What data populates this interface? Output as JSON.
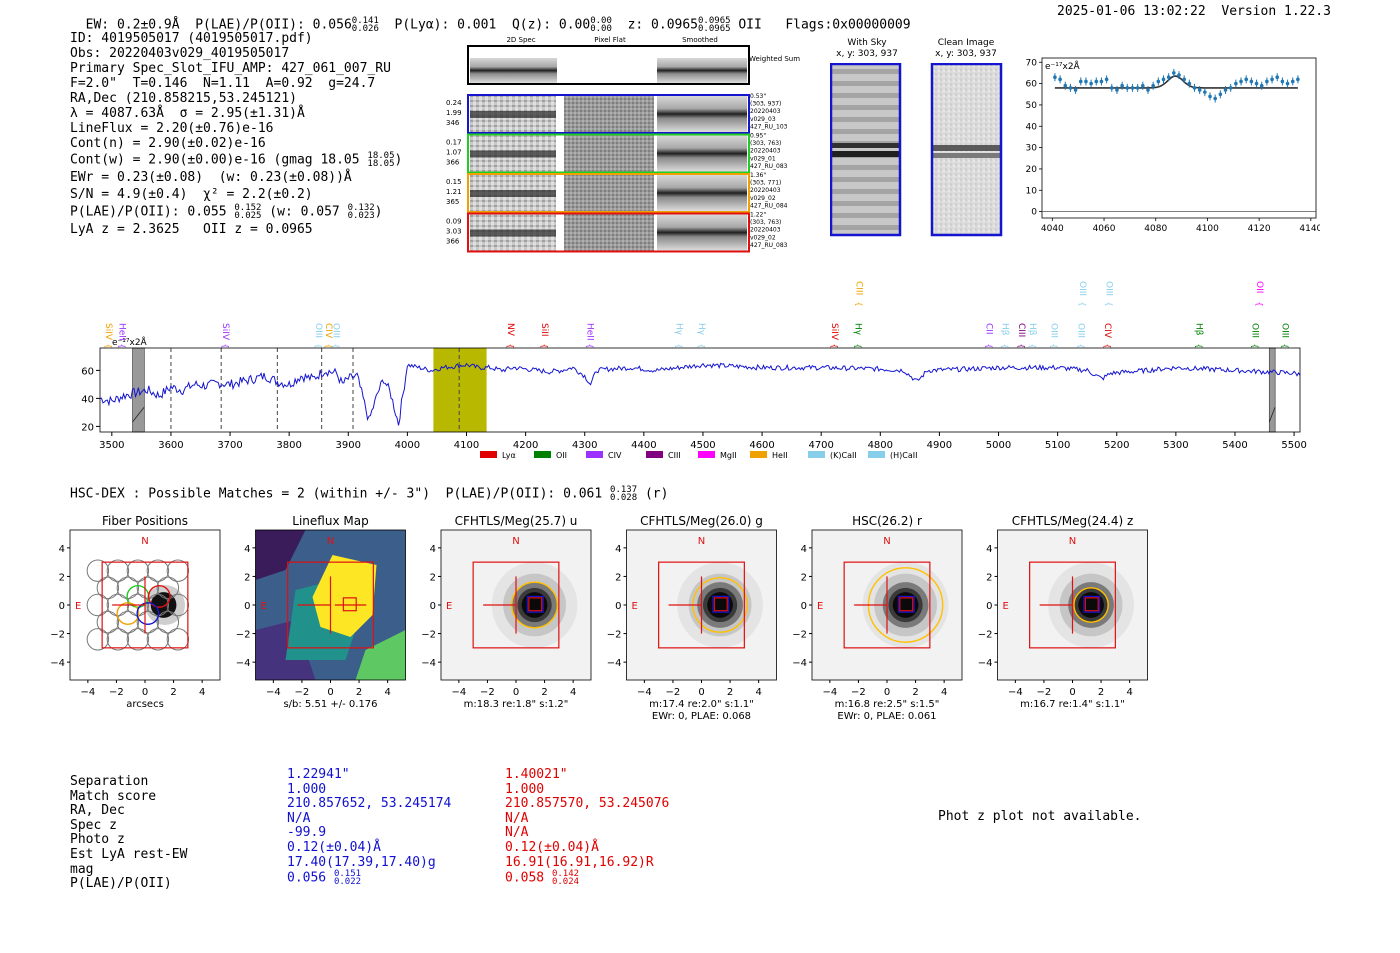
{
  "header": {
    "ew": "EW: 0.2±0.9Å",
    "plae_label": "P(LAE)/P(OII): 0.056",
    "plae_hi": "0.141",
    "plae_lo": "0.026",
    "plya": "P(Lyα): 0.001",
    "qz_label": "Q(z): 0.00",
    "qz_hi": "0.00",
    "qz_lo": "0.00",
    "z_label": "z: 0.0965",
    "z_hi": "0.0965",
    "z_lo": "0.0965",
    "z_line": "OII",
    "flags": "Flags:0x00000009",
    "timestamp": "2025-01-06 13:02:22",
    "version": "Version 1.22.3"
  },
  "info": {
    "lines": [
      "ID: 4019505017 (4019505017.pdf)",
      "Obs: 20220403v029_4019505017",
      "Primary Spec_Slot_IFU_AMP: 427_061_007_RU",
      "F=2.0\"  T=0.146  N=1.11  A=0.92  g=24.7",
      "RA,Dec (210.858215,53.245121)",
      "λ = 4087.63Å  σ = 2.95(±1.31)Å",
      "LineFlux = 2.20(±0.76)e-16",
      "Cont(n) = 2.90(±0.02)e-16"
    ],
    "contw": "Cont(w) = 2.90(±0.00)e-16 (gmag 18.05",
    "contw_hi": "18.05",
    "contw_lo": "18.05",
    "contw_end": ")",
    "ewr": "EWr = 0.23(±0.08)  (w: 0.23(±0.08))Å",
    "sn": "S/N = 4.9(±0.4)  χ² = 2.2(±0.2)",
    "plae": "P(LAE)/P(OII): 0.055",
    "plae_hi": "0.152",
    "plae_lo": "0.025",
    "plae_w": "(w: 0.057",
    "plae_w_hi": "0.132",
    "plae_w_lo": "0.023",
    "plae_end": ")",
    "lyaz": "LyA z = 2.3625   OII z = 0.0965"
  },
  "cutouts": {
    "col_headers": [
      "2D Spec",
      "Pixel Flat",
      "Smoothed"
    ],
    "weighted_sum": "Weighted Sum",
    "rows": [
      {
        "left": [
          "0.24",
          "1.99",
          "346"
        ],
        "right": [
          "0.53\"",
          "(303, 937)",
          "20220403",
          "v029_03",
          "427_RU_103"
        ],
        "color": "#1515d0"
      },
      {
        "left": [
          "0.17",
          "1.07",
          "366"
        ],
        "right": [
          "0.95\"",
          "(303, 763)",
          "20220403",
          "v029_01",
          "427_RU_083"
        ],
        "color": "#22cc22"
      },
      {
        "left": [
          "0.15",
          "1.21",
          "365"
        ],
        "right": [
          "1.36\"",
          "(303, 771)",
          "20220403",
          "v029_02",
          "427_RU_084"
        ],
        "color": "#f0a000"
      },
      {
        "left": [
          "0.09",
          "3.03",
          "366"
        ],
        "right": [
          "1.22\"",
          "(303, 763)",
          "20220403",
          "v029_02",
          "427_RU_083"
        ],
        "color": "#e01010"
      }
    ],
    "with_sky_title": "With Sky",
    "with_sky_xy": "x, y: 303, 937",
    "clean_title": "Clean Image",
    "clean_xy": "x, y: 303, 937"
  },
  "zoom_chart": {
    "unit": "e⁻¹⁷x2Å",
    "xticks": [
      "4040",
      "4060",
      "4080",
      "4100",
      "4120",
      "4140"
    ],
    "yticks": [
      "0",
      "10",
      "20",
      "30",
      "40",
      "50",
      "60",
      "70"
    ]
  },
  "chart_data": [
    {
      "type": "scatter",
      "title": "",
      "xlabel": "",
      "ylabel": "e⁻¹⁷x2Å",
      "xlim": [
        4036,
        4142
      ],
      "ylim": [
        -3,
        72
      ],
      "x": [
        4041,
        4043,
        4045,
        4047,
        4049,
        4051,
        4053,
        4055,
        4057,
        4059,
        4061,
        4063,
        4065,
        4067,
        4069,
        4071,
        4073,
        4075,
        4077,
        4079,
        4081,
        4083,
        4085,
        4087,
        4089,
        4091,
        4093,
        4095,
        4097,
        4099,
        4101,
        4103,
        4105,
        4107,
        4109,
        4111,
        4113,
        4115,
        4117,
        4119,
        4121,
        4123,
        4125,
        4127,
        4129,
        4131,
        4133,
        4135
      ],
      "y": [
        63,
        62,
        59,
        58,
        57,
        61,
        61,
        60,
        61,
        61,
        62,
        58,
        57,
        59,
        58,
        58,
        58,
        59,
        57,
        59,
        61,
        62,
        63,
        65,
        64,
        62,
        60,
        58,
        57,
        56,
        54,
        53,
        55,
        57,
        58,
        60,
        61,
        62,
        61,
        60,
        59,
        61,
        62,
        63,
        61,
        60,
        61,
        62
      ],
      "fit_baseline": 58,
      "fit_peak_x": 4087.6,
      "fit_peak_height": 5.5,
      "fit_sigma": 2.95
    },
    {
      "type": "line",
      "title": "",
      "xlabel": "",
      "ylabel": "e⁻¹⁷x2Å",
      "xlim": [
        3480,
        5510
      ],
      "ylim": [
        16,
        76
      ],
      "xticks": [
        "3500",
        "3600",
        "3700",
        "3800",
        "3900",
        "4000",
        "4100",
        "4200",
        "4300",
        "4400",
        "4500",
        "4600",
        "4700",
        "4800",
        "4900",
        "5000",
        "5100",
        "5200",
        "5300",
        "5400",
        "5500"
      ],
      "yticks": [
        "20",
        "40",
        "60"
      ],
      "spectrum_anchors": [
        [
          3480,
          40
        ],
        [
          3500,
          38
        ],
        [
          3520,
          42
        ],
        [
          3540,
          44
        ],
        [
          3560,
          46
        ],
        [
          3580,
          42
        ],
        [
          3600,
          48
        ],
        [
          3620,
          46
        ],
        [
          3640,
          50
        ],
        [
          3660,
          49
        ],
        [
          3680,
          51
        ],
        [
          3700,
          50
        ],
        [
          3720,
          52
        ],
        [
          3740,
          54
        ],
        [
          3760,
          56
        ],
        [
          3780,
          52
        ],
        [
          3800,
          50
        ],
        [
          3820,
          56
        ],
        [
          3840,
          54
        ],
        [
          3860,
          60
        ],
        [
          3880,
          58
        ],
        [
          3890,
          50
        ],
        [
          3900,
          54
        ],
        [
          3915,
          56
        ],
        [
          3925,
          40
        ],
        [
          3935,
          24
        ],
        [
          3950,
          44
        ],
        [
          3960,
          54
        ],
        [
          3972,
          43
        ],
        [
          3985,
          22
        ],
        [
          4000,
          64
        ],
        [
          4020,
          62
        ],
        [
          4040,
          60
        ],
        [
          4060,
          62
        ],
        [
          4080,
          63
        ],
        [
          4100,
          64
        ],
        [
          4120,
          62
        ],
        [
          4140,
          62
        ],
        [
          4160,
          60
        ],
        [
          4180,
          62
        ],
        [
          4200,
          61
        ],
        [
          4220,
          60
        ],
        [
          4240,
          59
        ],
        [
          4260,
          60
        ],
        [
          4280,
          62
        ],
        [
          4300,
          56
        ],
        [
          4310,
          50
        ],
        [
          4320,
          60
        ],
        [
          4340,
          61
        ],
        [
          4380,
          62
        ],
        [
          4420,
          60
        ],
        [
          4460,
          62
        ],
        [
          4500,
          64
        ],
        [
          4600,
          62
        ],
        [
          4700,
          62
        ],
        [
          4800,
          61
        ],
        [
          4840,
          60
        ],
        [
          4862,
          52
        ],
        [
          4880,
          60
        ],
        [
          4950,
          61
        ],
        [
          5000,
          62
        ],
        [
          5100,
          62
        ],
        [
          5150,
          60
        ],
        [
          5175,
          54
        ],
        [
          5190,
          58
        ],
        [
          5250,
          60
        ],
        [
          5300,
          62
        ],
        [
          5400,
          60
        ],
        [
          5500,
          58
        ],
        [
          5510,
          57
        ]
      ],
      "shaded_band": [
        4044,
        4134
      ],
      "emission_marker": 4087.6,
      "dashed_lines": [
        3600,
        3685,
        3780,
        3855,
        3908,
        4087.6
      ],
      "masked_regions": [
        [
          3535,
          3555
        ],
        [
          5458,
          5468
        ]
      ],
      "line_labels": [
        {
          "label": "SiIV",
          "x": 3490,
          "color": "#f0a000",
          "level": 0
        },
        {
          "label": "HeII",
          "x": 3513,
          "color": "#9b30ff",
          "level": 0
        },
        {
          "label": "SiIV",
          "x": 3688,
          "color": "#9b30ff",
          "level": 0
        },
        {
          "label": "OIII",
          "x": 3845,
          "color": "#87ceeb",
          "level": 0
        },
        {
          "label": "CIV",
          "x": 3862,
          "color": "#f0a000",
          "level": 0
        },
        {
          "label": "OIII",
          "x": 3875,
          "color": "#87ceeb",
          "level": 0
        },
        {
          "label": "NV",
          "x": 4170,
          "color": "#e00000",
          "level": 0
        },
        {
          "label": "SiII",
          "x": 4228,
          "color": "#e00000",
          "level": 0
        },
        {
          "label": "HeII",
          "x": 4305,
          "color": "#9b30ff",
          "level": 0
        },
        {
          "label": "Hγ",
          "x": 4455,
          "color": "#87ceeb",
          "level": 0
        },
        {
          "label": "Hγ",
          "x": 4493,
          "color": "#87ceeb",
          "level": 0
        },
        {
          "label": "SiIV",
          "x": 4718,
          "color": "#e00000",
          "level": 0
        },
        {
          "label": "CIII",
          "x": 4760,
          "color": "#f0a000",
          "level": 1
        },
        {
          "label": "Hγ",
          "x": 4758,
          "color": "#008000",
          "level": 0
        },
        {
          "label": "CII",
          "x": 4980,
          "color": "#9b30ff",
          "level": 0
        },
        {
          "label": "Hβ",
          "x": 5007,
          "color": "#87ceeb",
          "level": 0
        },
        {
          "label": "CIII",
          "x": 5035,
          "color": "#800080",
          "level": 0
        },
        {
          "label": "Hβ",
          "x": 5053,
          "color": "#87ceeb",
          "level": 0
        },
        {
          "label": "OIII",
          "x": 5090,
          "color": "#87ceeb",
          "level": 0
        },
        {
          "label": "OIII",
          "x": 5135,
          "color": "#87ceeb",
          "level": 0
        },
        {
          "label": "OIII",
          "x": 5138,
          "color": "#87ceeb",
          "level": 1
        },
        {
          "label": "CIV",
          "x": 5180,
          "color": "#e00000",
          "level": 0
        },
        {
          "label": "OIII",
          "x": 5183,
          "color": "#87ceeb",
          "level": 1
        },
        {
          "label": "Hβ",
          "x": 5335,
          "color": "#008000",
          "level": 0
        },
        {
          "label": "OIII",
          "x": 5430,
          "color": "#008000",
          "level": 0
        },
        {
          "label": "OII",
          "x": 5437,
          "color": "#ff00ff",
          "level": 1
        },
        {
          "label": "OIII",
          "x": 5480,
          "color": "#008000",
          "level": 0
        }
      ],
      "legend": [
        {
          "name": "Lyα",
          "color": "#e00000"
        },
        {
          "name": "OII",
          "color": "#008000"
        },
        {
          "name": "CIV",
          "color": "#9b30ff"
        },
        {
          "name": "CIII",
          "color": "#800080"
        },
        {
          "name": "MgII",
          "color": "#ff00ff"
        },
        {
          "name": "HeII",
          "color": "#f0a000"
        },
        {
          "name": "(K)CaII",
          "color": "#87ceeb"
        },
        {
          "name": "(H)CaII",
          "color": "#87ceeb"
        }
      ]
    }
  ],
  "hsc": {
    "title": "HSC-DEX : Possible Matches = 2 (within +/- 3\")  P(LAE)/P(OII): 0.061",
    "title_hi": "0.137",
    "title_lo": "0.028",
    "title_band": "(r)",
    "panels": [
      {
        "title": "Fiber Positions",
        "sub1": "arcsecs",
        "sub2": "",
        "kind": "fiber"
      },
      {
        "title": "Lineflux Map",
        "sub1": "s/b: 5.51 +/- 0.176",
        "sub2": "",
        "kind": "flux"
      },
      {
        "title": "CFHTLS/Meg(25.7) u",
        "sub1": "m:18.3  re:1.8\"  s:1.2\"",
        "sub2": "",
        "kind": "img",
        "circle_r": 1.6
      },
      {
        "title": "CFHTLS/Meg(26.0) g",
        "sub1": "m:17.4  re:2.0\"  s:1.1\"",
        "sub2": "EWr: 0, PLAE: 0.068",
        "kind": "img",
        "circle_r": 1.9
      },
      {
        "title": "HSC(26.2) r",
        "sub1": "m:16.8  re:2.5\"  s:1.5\"",
        "sub2": "EWr: 0, PLAE: 0.061",
        "kind": "img",
        "circle_r": 2.6
      },
      {
        "title": "CFHTLS/Meg(24.4) z",
        "sub1": "m:16.7  re:1.4\"  s:1.1\"",
        "sub2": "",
        "kind": "img",
        "circle_r": 1.2
      }
    ],
    "ticks": [
      "−4",
      "−2",
      "0",
      "2",
      "4"
    ],
    "north": "N",
    "east": "E"
  },
  "table": {
    "labels": [
      "Separation",
      "Match score",
      "RA, Dec",
      "Spec z",
      "Photo z",
      "Est LyA rest-EW",
      "mag",
      "P(LAE)/P(OII)"
    ],
    "col1": [
      "1.22941\"",
      "1.000",
      "210.857652, 53.245174",
      "N/A",
      "-99.9",
      "0.12(±0.04)Å",
      "17.40(17.39,17.40)g",
      "0.056"
    ],
    "col1_hi": "0.151",
    "col1_lo": "0.022",
    "col2": [
      "1.40021\"",
      "1.000",
      "210.857570, 53.245076",
      "N/A",
      "N/A",
      "0.12(±0.04)Å",
      "16.91(16.91,16.92)R",
      "0.058"
    ],
    "col2_hi": "0.142",
    "col2_lo": "0.024",
    "photz_msg": "Phot z plot not available."
  }
}
